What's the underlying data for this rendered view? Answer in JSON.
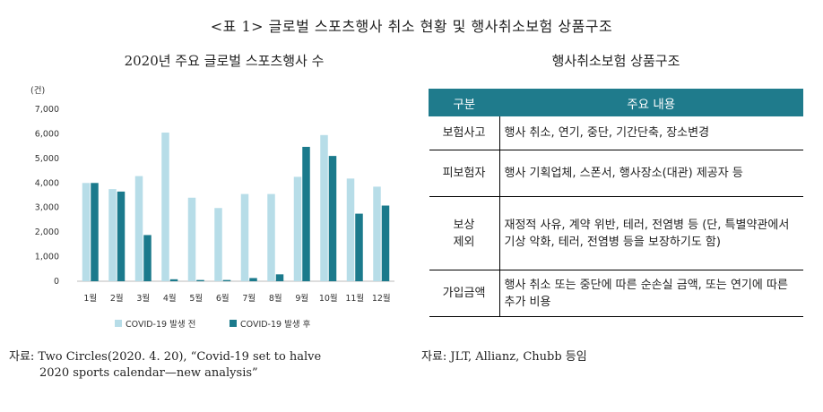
{
  "title": "<표 1> 글로벌 스포츠행사 취소 현황 및 행사취소보험 상품구조",
  "chart_data": {
    "type": "bar",
    "title": "2020년 주요 글로벌 스포츠행사 수",
    "unit_label": "(건)",
    "categories": [
      "1월",
      "2월",
      "3월",
      "4월",
      "5월",
      "6월",
      "7월",
      "8월",
      "9월",
      "10월",
      "11월",
      "12월"
    ],
    "series": [
      {
        "name": "COVID-19 발생 전",
        "color": "#b7dde8",
        "values": [
          4000,
          3750,
          4280,
          6050,
          3400,
          2980,
          3550,
          3550,
          4250,
          5950,
          4180,
          3850
        ]
      },
      {
        "name": "COVID-19 발생 후",
        "color": "#1b7a8c",
        "values": [
          4000,
          3650,
          1880,
          80,
          50,
          50,
          130,
          280,
          5470,
          5100,
          2750,
          3080
        ]
      }
    ],
    "ylim": [
      0,
      7000
    ],
    "yticks": [
      "0",
      "1,000",
      "2,000",
      "3,000",
      "4,000",
      "5,000",
      "6,000",
      "7,000"
    ],
    "legend_position": "bottom",
    "grid": false
  },
  "table": {
    "title": "행사취소보험 상품구조",
    "headers": [
      "구분",
      "주요 내용"
    ],
    "rows": [
      {
        "label": "보험사고",
        "content": "행사 취소, 연기, 중단, 기간단축, 장소변경"
      },
      {
        "label": "피보험자",
        "content": "행사 기획업체, 스폰서, 행사장소(대관) 제공자 등"
      },
      {
        "label": "보상\n제외",
        "content": "재정적 사유, 계약 위반, 테러, 전염병 등 (단, 특별약관에서 기상 악화, 테러, 전염병 등을 보장하기도 함)"
      },
      {
        "label": "가입금액",
        "content": "행사 취소 또는 중단에 따른 순손실 금액, 또는 연기에 따른 추가 비용"
      }
    ]
  },
  "sources": {
    "chart_line1": "자료: Two Circles(2020. 4. 20), “Covid-19 set to halve",
    "chart_line2": "2020 sports calendar—new analysis”",
    "table": "자료: JLT, Allianz, Chubb 등임"
  }
}
